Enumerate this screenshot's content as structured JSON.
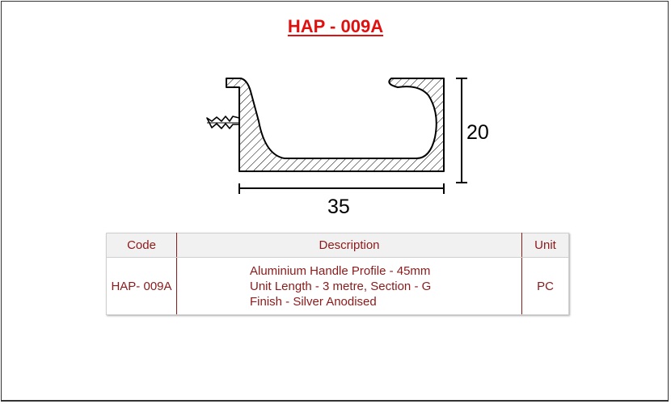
{
  "title": "HAP - 009A",
  "drawing": {
    "height_dim": "20",
    "width_dim": "35"
  },
  "table": {
    "headers": {
      "code": "Code",
      "description": "Description",
      "unit": "Unit"
    },
    "rows": [
      {
        "code": "HAP- 009A",
        "description": [
          "Aluminium Handle Profile - 45mm",
          "Unit Length - 3 metre, Section - G",
          "Finish - Silver Anodised"
        ],
        "unit": "PC"
      }
    ]
  }
}
